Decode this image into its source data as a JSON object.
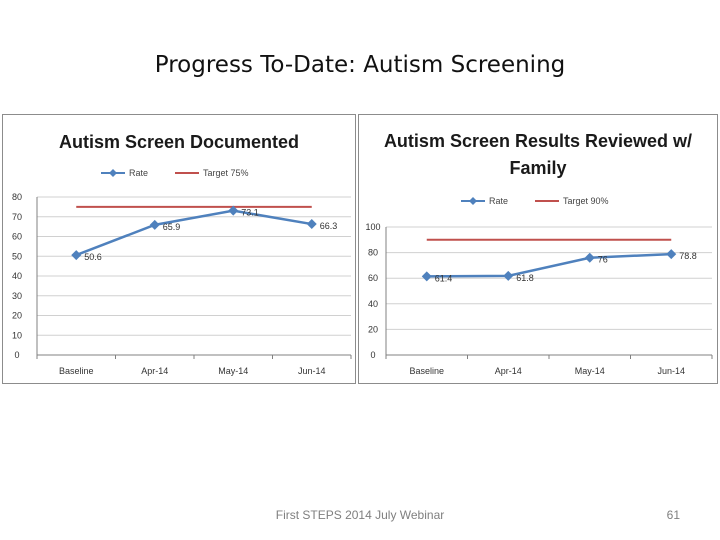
{
  "slide": {
    "title": "Progress To-Date: Autism Screening",
    "footer": "First STEPS 2014 July Webinar",
    "page_number": "61"
  },
  "colors": {
    "rate": "#4f81bd",
    "target": "#c0504d",
    "grid": "#d0d0d0",
    "axis": "#808080"
  },
  "chart_data": [
    {
      "type": "line",
      "title": [
        "Autism Screen Documented"
      ],
      "categories": [
        "Baseline",
        "Apr-14",
        "May-14",
        "Jun-14"
      ],
      "series": [
        {
          "name": "Rate",
          "values": [
            50.6,
            65.9,
            73.1,
            66.3
          ],
          "labels": [
            "50.6",
            "65.9",
            "73.1",
            "66.3"
          ]
        },
        {
          "name": "Target 75%",
          "values": [
            75,
            75,
            75,
            75
          ]
        }
      ],
      "yticks": [
        "0",
        "10",
        "20",
        "30",
        "40",
        "50",
        "60",
        "70",
        "80"
      ],
      "ylim": [
        0,
        80
      ],
      "legend": "top"
    },
    {
      "type": "line",
      "title": [
        "Autism Screen Results Reviewed w/",
        "Family"
      ],
      "categories": [
        "Baseline",
        "Apr-14",
        "May-14",
        "Jun-14"
      ],
      "series": [
        {
          "name": "Rate",
          "values": [
            61.4,
            61.8,
            76,
            78.8
          ],
          "labels": [
            "61.4",
            "61.8",
            "76",
            "78.8"
          ]
        },
        {
          "name": "Target 90%",
          "values": [
            90,
            90,
            90,
            90
          ]
        }
      ],
      "yticks": [
        "0",
        "20",
        "40",
        "60",
        "80",
        "100"
      ],
      "ylim": [
        0,
        100
      ],
      "legend": "top"
    }
  ]
}
